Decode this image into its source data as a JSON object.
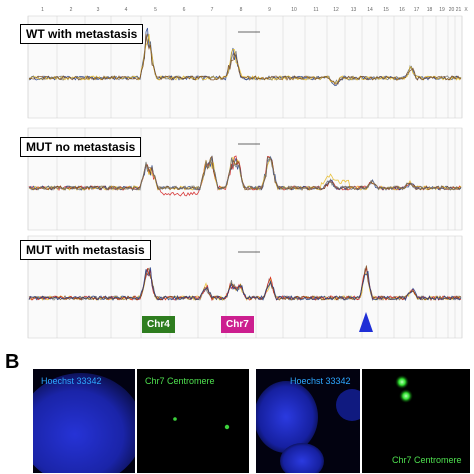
{
  "panel_a": {
    "chromosome_labels": [
      "1",
      "2",
      "3",
      "4",
      "5",
      "6",
      "7",
      "8",
      "9",
      "10",
      "11",
      "12",
      "13",
      "14",
      "15",
      "16",
      "17",
      "18",
      "19",
      "20",
      "21",
      "X"
    ],
    "tracks": [
      {
        "label": "WT with metastasis"
      },
      {
        "label": "MUT no metastasis"
      },
      {
        "label": "MUT with metastasis"
      }
    ],
    "annotations": {
      "chr4": "Chr4",
      "chr7": "Chr7"
    },
    "colors": {
      "chr4_tag": "#2e7d1f",
      "chr7_tag": "#cc1f8f",
      "arrow": "#1f2fd6",
      "trace_blue": "#1f3c88",
      "trace_yellow": "#e6b81c",
      "trace_red": "#d11b1b",
      "trace_gray": "#6f6f6f",
      "trace_brown": "#7a4a1e"
    }
  },
  "panel_b": {
    "letter": "B",
    "images": [
      {
        "stain": "Hoechst 33342"
      },
      {
        "stain": "Chr7 Centromere"
      },
      {
        "stain": "Hoechst 33342"
      },
      {
        "stain": "Chr7 Centromere"
      }
    ]
  }
}
